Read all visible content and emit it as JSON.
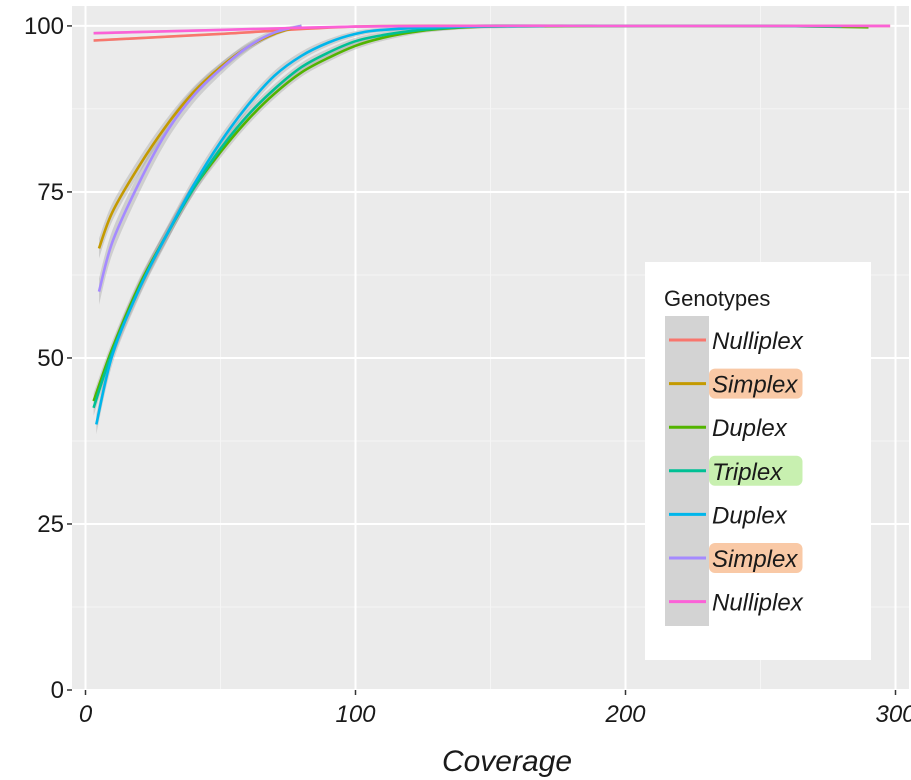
{
  "chart_data": {
    "type": "line",
    "title": "",
    "xlabel": "Coverage",
    "ylabel": "",
    "xlim": [
      -5,
      305
    ],
    "ylim": [
      0,
      103
    ],
    "x_ticks": [
      0,
      100,
      200,
      300
    ],
    "x_tick_labels": [
      "0",
      "100",
      "200",
      "300"
    ],
    "y_ticks": [
      0,
      25,
      50,
      75,
      100
    ],
    "y_tick_labels": [
      "0",
      "25",
      "50",
      "75",
      "100"
    ],
    "grid": true,
    "legend": {
      "title": "Genotypes",
      "position": "right",
      "entries": [
        {
          "label": "Nulliplex",
          "color": "#F8766D",
          "highlight": ""
        },
        {
          "label": "Simplex",
          "color": "#C49A00",
          "highlight": "#F9C9A6"
        },
        {
          "label": "Duplex",
          "color": "#53B400",
          "highlight": ""
        },
        {
          "label": "Triplex",
          "color": "#00C094",
          "highlight": "#C8F0B0"
        },
        {
          "label": "Duplex",
          "color": "#00B6EB",
          "highlight": ""
        },
        {
          "label": "Simplex",
          "color": "#A58AFF",
          "highlight": "#F9C9A6"
        },
        {
          "label": "Nulliplex",
          "color": "#FB61D7",
          "highlight": ""
        }
      ]
    },
    "series": [
      {
        "color": "#F8766D",
        "band": 0.2,
        "x": [
          3,
          50,
          100,
          150,
          200,
          250,
          298
        ],
        "y": [
          97.8,
          98.8,
          99.9,
          100,
          100,
          100,
          100
        ]
      },
      {
        "color": "#C49A00",
        "band": 1.5,
        "x": [
          5,
          10,
          20,
          30,
          40,
          50,
          60,
          70,
          80
        ],
        "y": [
          66.5,
          72,
          79,
          85,
          90,
          93.8,
          96.8,
          98.8,
          100
        ]
      },
      {
        "color": "#53B400",
        "band": 1.2,
        "x": [
          3,
          10,
          20,
          30,
          40,
          50,
          60,
          70,
          80,
          90,
          100,
          110,
          120,
          130,
          150,
          200,
          250,
          290
        ],
        "y": [
          43.5,
          51.5,
          61,
          68.5,
          75.5,
          81,
          85.8,
          89.8,
          93,
          95.2,
          97,
          98.2,
          99,
          99.5,
          99.9,
          100,
          100,
          99.8
        ]
      },
      {
        "color": "#00C094",
        "band": 1.2,
        "x": [
          3,
          10,
          20,
          30,
          40,
          50,
          60,
          70,
          80,
          90,
          100,
          110,
          120,
          130,
          150,
          200,
          250,
          280
        ],
        "y": [
          42.5,
          51,
          60.5,
          68.5,
          75.5,
          81.5,
          86.5,
          90.5,
          93.8,
          96,
          97.7,
          98.6,
          99.2,
          99.6,
          100,
          100,
          100,
          99.9
        ]
      },
      {
        "color": "#00B6EB",
        "band": 1.5,
        "x": [
          4,
          10,
          20,
          30,
          40,
          50,
          60,
          70,
          80,
          90,
          100,
          110,
          130,
          170
        ],
        "y": [
          40,
          50.5,
          60.5,
          68.5,
          76,
          82.5,
          88,
          92.5,
          95.5,
          97.5,
          98.8,
          99.4,
          99.8,
          100
        ]
      },
      {
        "color": "#A58AFF",
        "band": 2.0,
        "x": [
          5,
          10,
          20,
          30,
          40,
          50,
          60,
          70,
          80
        ],
        "y": [
          60,
          67.5,
          76.5,
          84,
          89.5,
          93.5,
          96.8,
          99,
          100
        ]
      },
      {
        "color": "#FB61D7",
        "band": 0.2,
        "x": [
          3,
          50,
          100,
          150,
          200,
          250,
          298
        ],
        "y": [
          98.9,
          99.4,
          99.9,
          100,
          100,
          100,
          100
        ]
      }
    ]
  }
}
